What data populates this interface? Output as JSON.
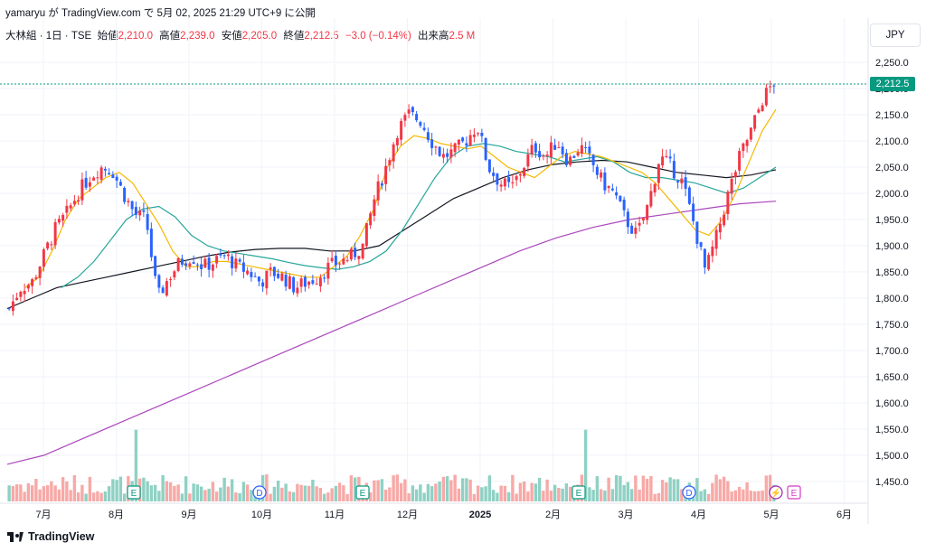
{
  "header": {
    "caption": "yamaryu が TradingView.com で 5月 02, 2025 21:29 UTC+9 に公開"
  },
  "legend": {
    "symbol": "大林組 · 1日 · TSE",
    "open_label": "始値",
    "open_value": "2,210.0",
    "high_label": "高値",
    "high_value": "2,239.0",
    "low_label": "安値",
    "low_value": "2,205.0",
    "close_label": "終値",
    "close_value": "2,212.5",
    "change": "−3.0 (−0.14%)",
    "volume_label": "出来高",
    "volume_value": "2.5 M"
  },
  "currency": "JPY",
  "last_price_tag": "2,212.5",
  "brand": "TradingView",
  "colors": {
    "up": "#f23645",
    "down": "#2962ff",
    "vol_up": "#f7a9a7",
    "vol_down": "#8fd1c4",
    "ma_fast": "#f5b800",
    "ma_mid": "#26a69a",
    "ma_slow": "#131722",
    "ma_long": "#ab47bc"
  },
  "chart_data": {
    "type": "candlestick",
    "y_axis_ticks": [
      "2,250.0",
      "2,200.0",
      "2,150.0",
      "2,100.0",
      "2,050.0",
      "2,000.0",
      "1,950.0",
      "1,900.0",
      "1,850.0",
      "1,800.0",
      "1,750.0",
      "1,700.0",
      "1,650.0",
      "1,600.0",
      "1,550.0",
      "1,500.0",
      "1,450.0"
    ],
    "ylim": [
      1425,
      2285
    ],
    "x_axis_labels": [
      "7月",
      "8月",
      "9月",
      "10月",
      "11月",
      "12月",
      "2025",
      "2月",
      "3月",
      "4月",
      "5月",
      "6月"
    ],
    "events": [
      {
        "icon": "E",
        "label": "earnings"
      },
      {
        "icon": "D",
        "label": "dividend"
      },
      {
        "icon": "E",
        "label": "earnings"
      },
      {
        "icon": "E",
        "label": "earnings"
      },
      {
        "icon": "D",
        "label": "dividend"
      },
      {
        "icon": "⚡",
        "label": "split"
      },
      {
        "icon": "E",
        "label": "earnings"
      }
    ],
    "close_path": [
      1780,
      1820,
      1830,
      1880,
      1930,
      1960,
      2000,
      2030,
      2050,
      2045,
      2000,
      1960,
      1950,
      1800,
      1840,
      1870,
      1880,
      1860,
      1870,
      1880,
      1860,
      1850,
      1830,
      1850,
      1840,
      1820,
      1830,
      1840,
      1860,
      1870,
      1880,
      1900,
      1990,
      2050,
      2120,
      2150,
      2140,
      2100,
      2070,
      2080,
      2100,
      2130,
      2050,
      2020,
      2010,
      2050,
      2090,
      2070,
      2100,
      2060,
      2090,
      2060,
      2020,
      2000,
      1950,
      1920,
      1980,
      2070,
      2050,
      2020,
      1940,
      1850,
      1920,
      2000,
      2070,
      2120,
      2180,
      2212.5
    ],
    "ma_fast": [
      1820,
      1840,
      1890,
      1950,
      1990,
      2010,
      2030,
      2040,
      2020,
      1980,
      1940,
      1890,
      1860,
      1860,
      1870,
      1870,
      1865,
      1860,
      1855,
      1850,
      1845,
      1840,
      1840,
      1860,
      1880,
      1920,
      1970,
      2050,
      2090,
      2110,
      2105,
      2095,
      2090,
      2085,
      2090,
      2070,
      2050,
      2040,
      2030,
      2050,
      2070,
      2080,
      2075,
      2070,
      2060,
      2050,
      2040,
      2020,
      1990,
      1960,
      1930,
      1920,
      1950,
      2000,
      2060,
      2120,
      2160
    ],
    "ma_mid": [
      1820,
      1840,
      1870,
      1910,
      1950,
      1970,
      1975,
      1955,
      1920,
      1900,
      1890,
      1885,
      1880,
      1875,
      1868,
      1862,
      1858,
      1855,
      1860,
      1870,
      1890,
      1930,
      1980,
      2030,
      2070,
      2090,
      2095,
      2090,
      2080,
      2075,
      2070,
      2060,
      2065,
      2070,
      2060,
      2040,
      2030,
      2030,
      2025,
      2020,
      2010,
      2000,
      2010,
      2030,
      2050
    ],
    "ma_slow": [
      1780,
      1800,
      1820,
      1830,
      1840,
      1850,
      1860,
      1870,
      1880,
      1888,
      1893,
      1895,
      1895,
      1890,
      1890,
      1900,
      1930,
      1960,
      1990,
      2010,
      2030,
      2045,
      2055,
      2060,
      2063,
      2060,
      2050,
      2040,
      2035,
      2030,
      2035,
      2045
    ],
    "ma_long": [
      1483,
      1500,
      1530,
      1560,
      1590,
      1620,
      1650,
      1680,
      1710,
      1740,
      1770,
      1800,
      1830,
      1860,
      1890,
      1915,
      1935,
      1950,
      1960,
      1970,
      1980,
      1985
    ]
  }
}
